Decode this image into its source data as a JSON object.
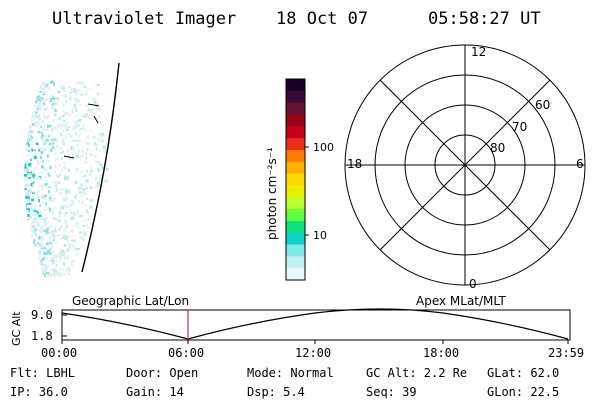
{
  "header": {
    "title": "Ultraviolet Imager",
    "date": "18 Oct 07",
    "time": "05:58:27 UT"
  },
  "colorbar": {
    "unit_label": "photon cm⁻²s⁻¹",
    "ticks": [
      "100",
      "10"
    ],
    "colors": [
      "#1a0026",
      "#3a0a3a",
      "#6a1030",
      "#9a0018",
      "#c8001a",
      "#e8301a",
      "#ff7a00",
      "#ffb000",
      "#ffd800",
      "#e8f000",
      "#b8ff30",
      "#60ff40",
      "#10e080",
      "#10d0c8",
      "#80e8e8",
      "#c0f0f0",
      "#e8f8f8"
    ]
  },
  "polar_plot": {
    "mlt_labels": [
      "12",
      "18",
      "6",
      "0"
    ],
    "mlat_labels": [
      "60",
      "70",
      "80"
    ]
  },
  "timeline": {
    "left_title": "Geographic Lat/Lon",
    "right_title": "Apex MLat/MLT",
    "axis_label": "GC Alt",
    "y_ticks": [
      "9.0",
      "1.8"
    ],
    "x_ticks": [
      "00:00",
      "06:00",
      "12:00",
      "18:00",
      "23:59"
    ],
    "marker_color": "#c0304a"
  },
  "info": {
    "flt": "Flt: LBHL",
    "door": "Door: Open",
    "mode": "Mode: Normal",
    "gc_alt": "GC Alt: 2.2 Re",
    "glat": "GLat:  62.0",
    "ip": "IP: 36.0",
    "gain": "Gain: 14",
    "dsp": "Dsp:     5.4",
    "seq": "Seq: 39",
    "glon": "GLon:  22.5"
  }
}
